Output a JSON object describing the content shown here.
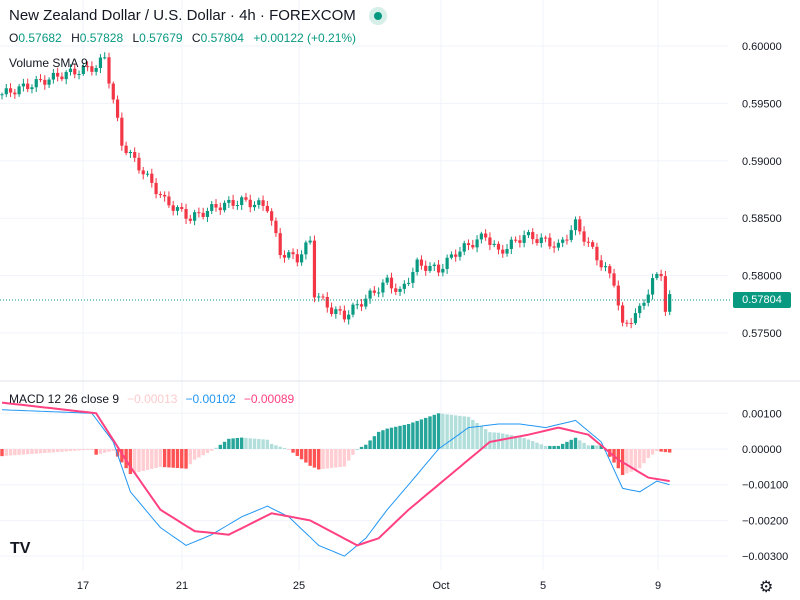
{
  "header": {
    "title": "New Zealand Dollar / U.S. Dollar · 4h · FOREXCOM",
    "ohlc": {
      "o_label": "O",
      "o": "0.57682",
      "h_label": "H",
      "h": "0.57828",
      "l_label": "L",
      "l": "0.57679",
      "c_label": "C",
      "c": "0.57804",
      "change": "+0.00122 (+0.21%)"
    }
  },
  "volume_label": "Volume SMA 9",
  "macd_legend": {
    "name": "MACD 12 26 close 9",
    "hist": "−0.00013",
    "macd": "−0.00102",
    "signal": "−0.00089"
  },
  "current_price": "0.57804",
  "colors": {
    "up": "#089981",
    "down": "#f23645",
    "macd": "#2196f3",
    "signal": "#ff4081"
  },
  "logo": "TV",
  "chart_data": {
    "type": "candlestick",
    "bars": 157,
    "price_axis": {
      "ticks": [
        "0.60000",
        "0.59500",
        "0.59000",
        "0.58500",
        "0.58000",
        "0.57500"
      ],
      "range": [
        0.5725,
        0.6015
      ]
    },
    "macd_axis": {
      "ticks": [
        "0.00100",
        "0.00000",
        "-0.00100",
        "-0.00200",
        "-0.00300"
      ],
      "range": [
        -0.0033,
        0.0013
      ]
    },
    "x_ticks": [
      "17",
      "21",
      "25",
      "Oct",
      "5",
      "9"
    ],
    "close_anchors": [
      [
        0,
        0.5958
      ],
      [
        14,
        0.5975
      ],
      [
        22,
        0.5982
      ],
      [
        24,
        0.599
      ],
      [
        28,
        0.5915
      ],
      [
        33,
        0.589
      ],
      [
        38,
        0.5865
      ],
      [
        44,
        0.585
      ],
      [
        50,
        0.586
      ],
      [
        56,
        0.5865
      ],
      [
        62,
        0.586
      ],
      [
        65,
        0.582
      ],
      [
        69,
        0.5815
      ],
      [
        72,
        0.583
      ],
      [
        73,
        0.5785
      ],
      [
        77,
        0.577
      ],
      [
        80,
        0.5765
      ],
      [
        85,
        0.578
      ],
      [
        90,
        0.5795
      ],
      [
        93,
        0.5785
      ],
      [
        97,
        0.581
      ],
      [
        102,
        0.5805
      ],
      [
        106,
        0.582
      ],
      [
        113,
        0.5835
      ],
      [
        116,
        0.582
      ],
      [
        122,
        0.5835
      ],
      [
        127,
        0.583
      ],
      [
        130,
        0.5825
      ],
      [
        134,
        0.5845
      ],
      [
        140,
        0.581
      ],
      [
        143,
        0.5795
      ],
      [
        145,
        0.5755
      ],
      [
        149,
        0.577
      ],
      [
        152,
        0.5795
      ],
      [
        154,
        0.5803
      ],
      [
        155,
        0.577
      ],
      [
        156,
        0.578
      ]
    ],
    "macd_anchors": [
      [
        0,
        0.0011
      ],
      [
        21,
        0.001
      ],
      [
        26,
        0.0002
      ],
      [
        30,
        -0.0012
      ],
      [
        37,
        -0.0022
      ],
      [
        43,
        -0.0027
      ],
      [
        49,
        -0.0024
      ],
      [
        56,
        -0.0019
      ],
      [
        62,
        -0.0016
      ],
      [
        67,
        -0.0019
      ],
      [
        74,
        -0.0027
      ],
      [
        80,
        -0.003
      ],
      [
        85,
        -0.0025
      ],
      [
        90,
        -0.0017
      ],
      [
        95,
        -0.001
      ],
      [
        102,
        0.0
      ],
      [
        109,
        0.0006
      ],
      [
        116,
        0.0007
      ],
      [
        121,
        0.0007
      ],
      [
        127,
        0.0006
      ],
      [
        134,
        0.0008
      ],
      [
        140,
        0.0002
      ],
      [
        145,
        -0.0011
      ],
      [
        149,
        -0.0012
      ],
      [
        153,
        -0.0009
      ],
      [
        156,
        -0.001
      ]
    ],
    "signal_anchors": [
      [
        0,
        0.0013
      ],
      [
        22,
        0.001
      ],
      [
        30,
        -0.0005
      ],
      [
        37,
        -0.0017
      ],
      [
        45,
        -0.0023
      ],
      [
        53,
        -0.0024
      ],
      [
        63,
        -0.0018
      ],
      [
        72,
        -0.002
      ],
      [
        83,
        -0.0027
      ],
      [
        88,
        -0.0025
      ],
      [
        95,
        -0.0017
      ],
      [
        105,
        -0.0007
      ],
      [
        114,
        0.0002
      ],
      [
        123,
        0.0004
      ],
      [
        130,
        0.0006
      ],
      [
        137,
        0.0004
      ],
      [
        144,
        -0.0003
      ],
      [
        151,
        -0.0008
      ],
      [
        156,
        -0.0009
      ]
    ]
  }
}
